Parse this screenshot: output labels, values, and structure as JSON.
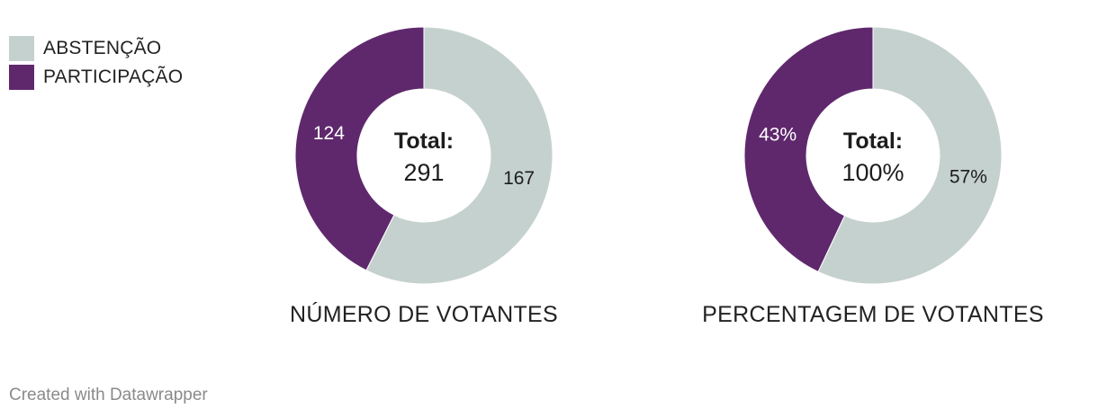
{
  "legend": [
    {
      "label": "ABSTENÇÃO",
      "color": "#c5d1ce"
    },
    {
      "label": "PARTICIPAÇÃO",
      "color": "#5f286c"
    }
  ],
  "chart_data": [
    {
      "type": "pie",
      "title": "NÚMERO DE VOTANTES",
      "center_label": "Total:",
      "center_value": "291",
      "slices": [
        {
          "name": "ABSTENÇÃO",
          "value": 167,
          "label": "167",
          "color": "#c5d1ce"
        },
        {
          "name": "PARTICIPAÇÃO",
          "value": 124,
          "label": "124",
          "color": "#5f286c"
        }
      ]
    },
    {
      "type": "pie",
      "title": "PERCENTAGEM DE VOTANTES",
      "center_label": "Total:",
      "center_value": "100%",
      "slices": [
        {
          "name": "ABSTENÇÃO",
          "value": 57,
          "label": "57%",
          "color": "#c5d1ce"
        },
        {
          "name": "PARTICIPAÇÃO",
          "value": 43,
          "label": "43%",
          "color": "#5f286c"
        }
      ]
    }
  ],
  "footer": "Created with Datawrapper"
}
